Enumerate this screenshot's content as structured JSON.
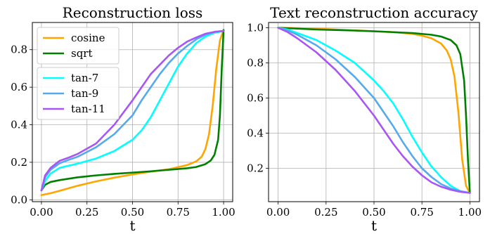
{
  "chart_data": [
    {
      "type": "line",
      "title": "Reconstruction loss",
      "xlabel": "t",
      "ylabel": "",
      "xlim": [
        -0.05,
        1.05
      ],
      "ylim": [
        -0.01,
        0.945
      ],
      "xticks": [
        0.0,
        0.25,
        0.5,
        0.75,
        1.0
      ],
      "xtick_labels": [
        "0.00",
        "0.25",
        "0.50",
        "0.75",
        "1.00"
      ],
      "yticks": [
        0.0,
        0.2,
        0.4,
        0.6,
        0.8
      ],
      "ytick_labels": [
        "0.0",
        "0.2",
        "0.4",
        "0.6",
        "0.8"
      ],
      "grid": true,
      "legend_placement": "upper-left",
      "legend_groups": [
        [
          "cosine",
          "sqrt"
        ],
        [
          "tan-7",
          "tan-9",
          "tan-11"
        ]
      ],
      "series": [
        {
          "name": "cosine",
          "color": "#ffa500",
          "x": [
            0.0,
            0.05,
            0.1,
            0.2,
            0.3,
            0.4,
            0.5,
            0.6,
            0.7,
            0.8,
            0.85,
            0.88,
            0.9,
            0.92,
            0.94,
            0.96,
            0.98,
            1.0
          ],
          "y": [
            0.025,
            0.035,
            0.048,
            0.075,
            0.098,
            0.118,
            0.135,
            0.15,
            0.163,
            0.185,
            0.205,
            0.23,
            0.27,
            0.35,
            0.5,
            0.7,
            0.85,
            0.905
          ]
        },
        {
          "name": "sqrt",
          "color": "#008000",
          "x": [
            0.0,
            0.02,
            0.05,
            0.1,
            0.2,
            0.3,
            0.4,
            0.5,
            0.6,
            0.7,
            0.8,
            0.85,
            0.9,
            0.93,
            0.95,
            0.97,
            0.98,
            0.99,
            1.0
          ],
          "y": [
            0.05,
            0.08,
            0.095,
            0.105,
            0.12,
            0.13,
            0.138,
            0.145,
            0.152,
            0.16,
            0.168,
            0.175,
            0.19,
            0.21,
            0.24,
            0.32,
            0.45,
            0.7,
            0.905
          ]
        },
        {
          "name": "tan-7",
          "color": "#00ffff",
          "x": [
            0.0,
            0.02,
            0.05,
            0.1,
            0.15,
            0.2,
            0.3,
            0.4,
            0.5,
            0.55,
            0.6,
            0.65,
            0.7,
            0.75,
            0.8,
            0.85,
            0.9,
            0.95,
            1.0
          ],
          "y": [
            0.05,
            0.1,
            0.14,
            0.17,
            0.182,
            0.193,
            0.22,
            0.26,
            0.32,
            0.37,
            0.44,
            0.53,
            0.62,
            0.71,
            0.78,
            0.835,
            0.87,
            0.89,
            0.9
          ]
        },
        {
          "name": "tan-9",
          "color": "#55aaee",
          "x": [
            0.0,
            0.02,
            0.05,
            0.1,
            0.15,
            0.2,
            0.3,
            0.4,
            0.5,
            0.55,
            0.6,
            0.65,
            0.7,
            0.75,
            0.8,
            0.85,
            0.9,
            0.95,
            1.0
          ],
          "y": [
            0.05,
            0.12,
            0.16,
            0.195,
            0.213,
            0.23,
            0.28,
            0.35,
            0.45,
            0.53,
            0.6,
            0.67,
            0.73,
            0.78,
            0.82,
            0.855,
            0.88,
            0.895,
            0.9
          ]
        },
        {
          "name": "tan-11",
          "color": "#a855f7",
          "x": [
            0.0,
            0.02,
            0.05,
            0.1,
            0.15,
            0.2,
            0.3,
            0.4,
            0.5,
            0.55,
            0.6,
            0.65,
            0.7,
            0.75,
            0.8,
            0.85,
            0.9,
            0.95,
            1.0
          ],
          "y": [
            0.05,
            0.13,
            0.17,
            0.208,
            0.225,
            0.245,
            0.3,
            0.4,
            0.53,
            0.6,
            0.67,
            0.72,
            0.77,
            0.81,
            0.843,
            0.865,
            0.885,
            0.895,
            0.9
          ]
        }
      ]
    },
    {
      "type": "line",
      "title": "Text reconstruction accuracy",
      "xlabel": "t",
      "ylabel": "",
      "xlim": [
        -0.05,
        1.05
      ],
      "ylim": [
        0.01,
        1.03
      ],
      "xticks": [
        0.0,
        0.25,
        0.5,
        0.75,
        1.0
      ],
      "xtick_labels": [
        "0.00",
        "0.25",
        "0.50",
        "0.75",
        "1.00"
      ],
      "yticks": [
        0.2,
        0.4,
        0.6,
        0.8,
        1.0
      ],
      "ytick_labels": [
        "0.2",
        "0.4",
        "0.6",
        "0.8",
        "1.0"
      ],
      "grid": true,
      "series": [
        {
          "name": "cosine",
          "color": "#ffa500",
          "x": [
            0.0,
            0.1,
            0.2,
            0.3,
            0.4,
            0.5,
            0.6,
            0.7,
            0.75,
            0.8,
            0.85,
            0.88,
            0.9,
            0.92,
            0.94,
            0.96,
            0.98,
            1.0
          ],
          "y": [
            1.0,
            0.998,
            0.995,
            0.99,
            0.985,
            0.98,
            0.975,
            0.965,
            0.955,
            0.94,
            0.91,
            0.87,
            0.82,
            0.72,
            0.52,
            0.25,
            0.1,
            0.06
          ]
        },
        {
          "name": "sqrt",
          "color": "#008000",
          "x": [
            0.0,
            0.1,
            0.2,
            0.3,
            0.4,
            0.5,
            0.6,
            0.7,
            0.8,
            0.85,
            0.9,
            0.93,
            0.95,
            0.97,
            0.98,
            0.99,
            1.0
          ],
          "y": [
            1.0,
            0.995,
            0.99,
            0.987,
            0.984,
            0.98,
            0.975,
            0.97,
            0.96,
            0.95,
            0.93,
            0.9,
            0.85,
            0.7,
            0.5,
            0.25,
            0.06
          ]
        },
        {
          "name": "tan-7",
          "color": "#00ffff",
          "x": [
            0.0,
            0.05,
            0.1,
            0.2,
            0.3,
            0.4,
            0.5,
            0.55,
            0.6,
            0.65,
            0.7,
            0.75,
            0.8,
            0.85,
            0.9,
            0.95,
            1.0
          ],
          "y": [
            1.0,
            0.99,
            0.97,
            0.93,
            0.87,
            0.8,
            0.7,
            0.64,
            0.57,
            0.48,
            0.38,
            0.29,
            0.21,
            0.15,
            0.1,
            0.07,
            0.06
          ]
        },
        {
          "name": "tan-9",
          "color": "#55aaee",
          "x": [
            0.0,
            0.05,
            0.1,
            0.2,
            0.3,
            0.4,
            0.5,
            0.55,
            0.6,
            0.65,
            0.7,
            0.75,
            0.8,
            0.85,
            0.9,
            0.95,
            1.0
          ],
          "y": [
            1.0,
            0.985,
            0.96,
            0.9,
            0.82,
            0.72,
            0.6,
            0.52,
            0.44,
            0.35,
            0.27,
            0.2,
            0.15,
            0.11,
            0.085,
            0.07,
            0.06
          ]
        },
        {
          "name": "tan-11",
          "color": "#a855f7",
          "x": [
            0.0,
            0.05,
            0.1,
            0.2,
            0.3,
            0.4,
            0.5,
            0.55,
            0.6,
            0.65,
            0.7,
            0.75,
            0.8,
            0.85,
            0.9,
            0.95,
            1.0
          ],
          "y": [
            1.0,
            0.975,
            0.94,
            0.86,
            0.76,
            0.64,
            0.5,
            0.42,
            0.34,
            0.27,
            0.21,
            0.16,
            0.12,
            0.095,
            0.078,
            0.066,
            0.06
          ]
        }
      ]
    }
  ]
}
